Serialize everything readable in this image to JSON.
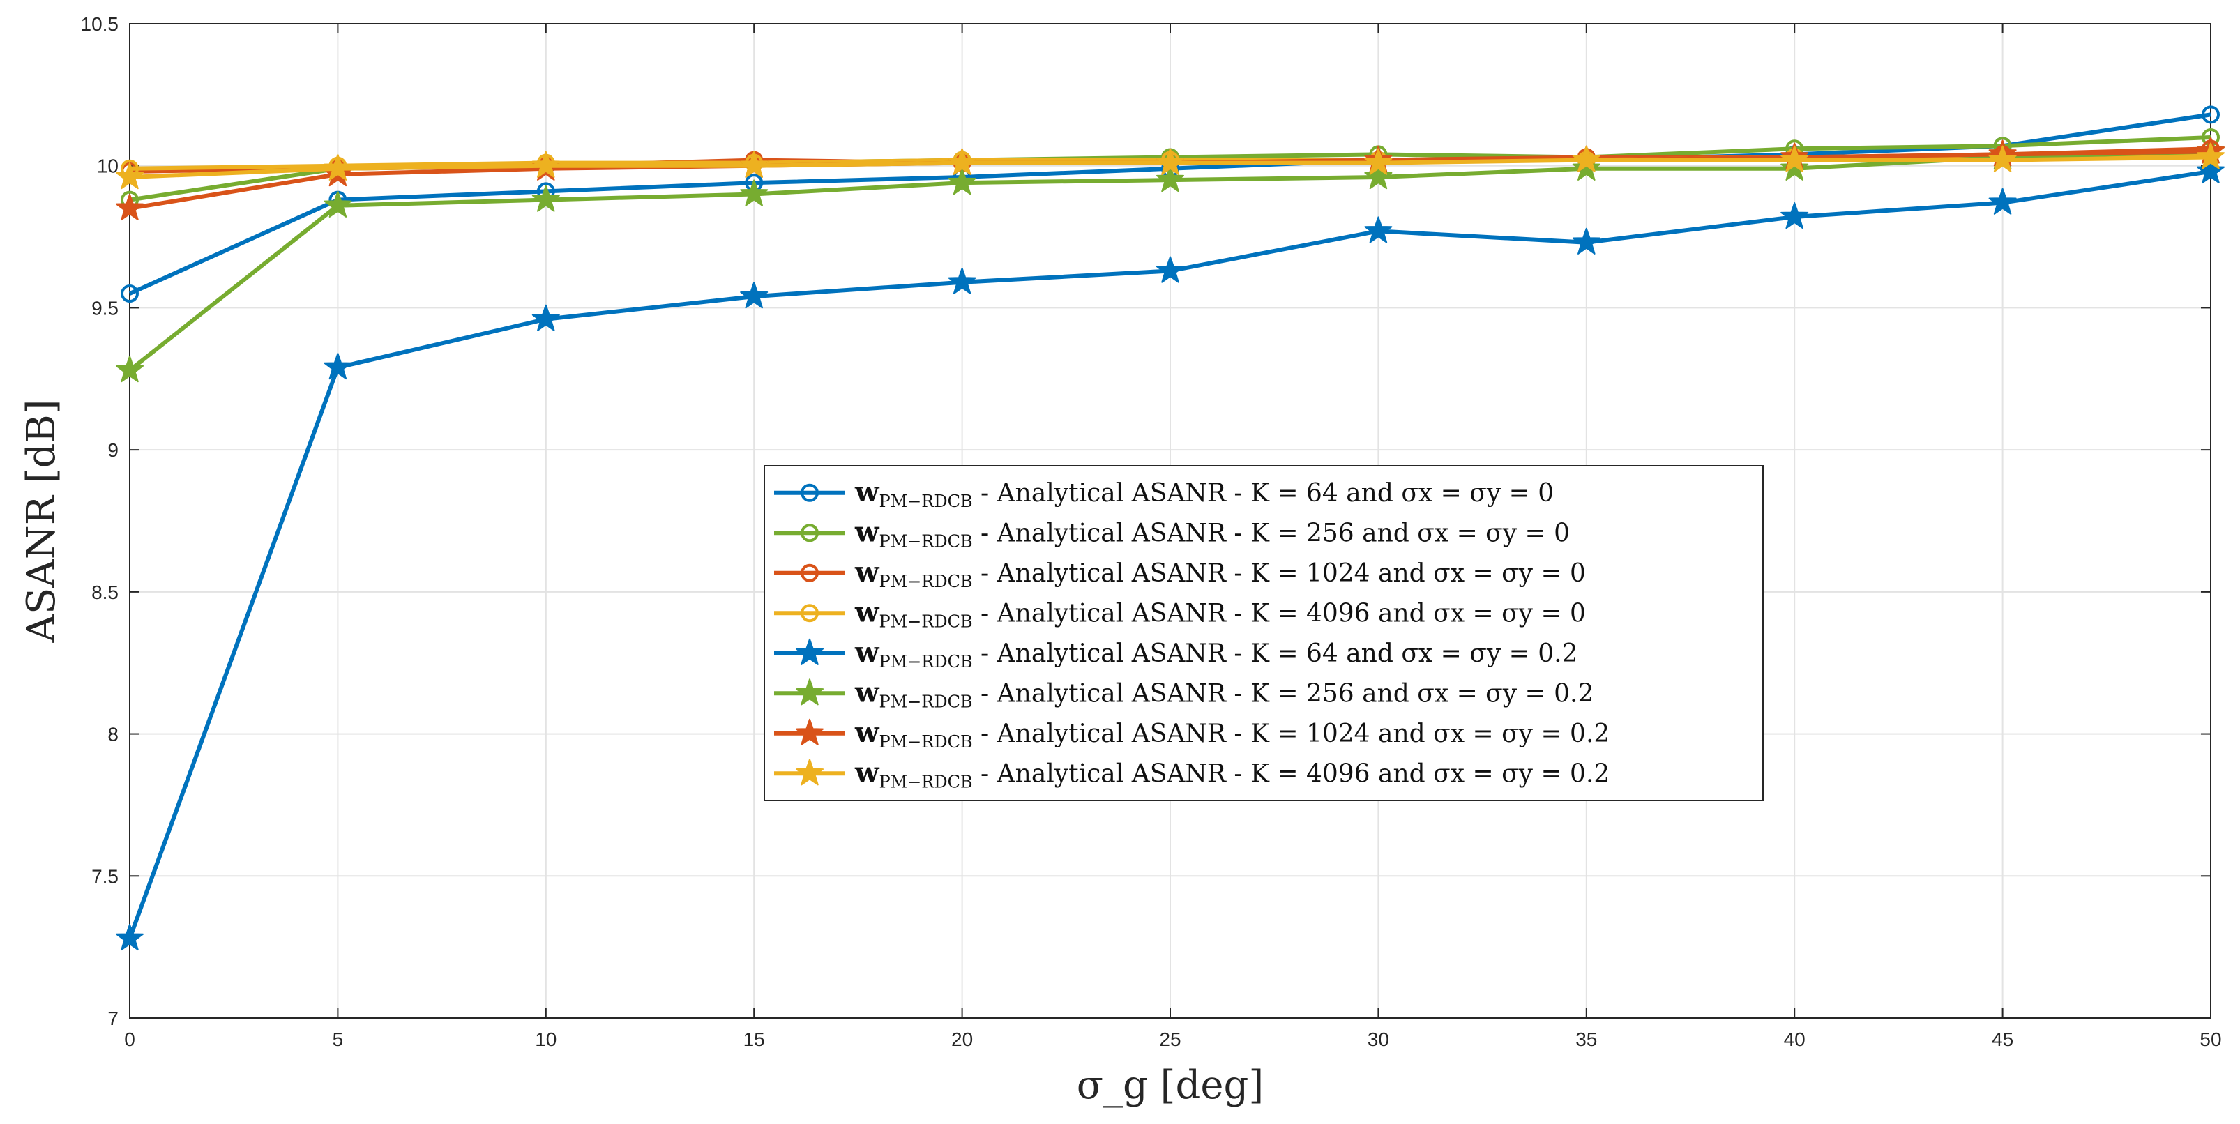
{
  "chart_data": {
    "type": "line",
    "title": "",
    "xlabel": "σ_g [deg]",
    "ylabel": "ASANR [dB]",
    "xlim": [
      0,
      50
    ],
    "ylim": [
      7,
      10.5
    ],
    "xticks": [
      0,
      5,
      10,
      15,
      20,
      25,
      30,
      35,
      40,
      45,
      50
    ],
    "xtick_labels": [
      "0",
      "5",
      "10",
      "15",
      "20",
      "25",
      "30",
      "35",
      "40",
      "45",
      "50"
    ],
    "yticks": [
      7,
      7.5,
      8,
      8.5,
      9,
      9.5,
      10,
      10.5
    ],
    "ytick_labels": [
      "7",
      "7.5",
      "8",
      "8.5",
      "9",
      "9.5",
      "10",
      "10.5"
    ],
    "grid": true,
    "legend_position": "center",
    "x": [
      0,
      5,
      10,
      15,
      20,
      25,
      30,
      35,
      40,
      45,
      50
    ],
    "series": [
      {
        "name": "w_PM−RDCB - Analytical ASANR - K = 64 and σx = σy = 0",
        "legend_text": "w",
        "legend_sub": "PM−RDCB",
        "legend_rest": "- Analytical ASANR - K = 64 and σx = σy = 0",
        "color": "#0072BD",
        "marker": "circle",
        "values": [
          9.55,
          9.88,
          9.91,
          9.94,
          9.96,
          9.99,
          10.02,
          10.02,
          10.04,
          10.07,
          10.18
        ]
      },
      {
        "name": "w_PM−RDCB - Analytical ASANR - K = 256 and σx = σy = 0",
        "legend_text": "w",
        "legend_sub": "PM−RDCB",
        "legend_rest": "- Analytical ASANR - K = 256 and σx = σy = 0",
        "color": "#77AC30",
        "marker": "circle",
        "values": [
          9.88,
          9.99,
          10.0,
          10.01,
          10.02,
          10.03,
          10.04,
          10.03,
          10.06,
          10.07,
          10.1
        ]
      },
      {
        "name": "w_PM−RDCB - Analytical ASANR - K = 1024 and σx = σy = 0",
        "legend_text": "w",
        "legend_sub": "PM−RDCB",
        "legend_rest": "- Analytical ASANR - K = 1024 and σx = σy = 0",
        "color": "#D95319",
        "marker": "circle",
        "values": [
          9.98,
          9.99,
          10.0,
          10.02,
          10.01,
          10.02,
          10.02,
          10.03,
          10.03,
          10.04,
          10.06
        ]
      },
      {
        "name": "w_PM−RDCB - Analytical ASANR - K = 4096 and σx = σy = 0",
        "legend_text": "w",
        "legend_sub": "PM−RDCB",
        "legend_rest": "- Analytical ASANR - K = 4096 and σx = σy = 0",
        "color": "#EDB120",
        "marker": "circle",
        "values": [
          9.99,
          10.0,
          10.01,
          10.01,
          10.02,
          10.02,
          10.02,
          10.02,
          10.03,
          10.03,
          10.04
        ]
      },
      {
        "name": "w_PM−RDCB - Analytical ASANR - K = 64 and σx = σy = 0.2",
        "legend_text": "w",
        "legend_sub": "PM−RDCB",
        "legend_rest": "- Analytical ASANR - K = 64 and σx = σy = 0.2",
        "color": "#0072BD",
        "marker": "star",
        "values": [
          7.28,
          9.29,
          9.46,
          9.54,
          9.59,
          9.63,
          9.77,
          9.73,
          9.82,
          9.87,
          9.98
        ]
      },
      {
        "name": "w_PM−RDCB - Analytical ASANR - K = 256 and σx = σy = 0.2",
        "legend_text": "w",
        "legend_sub": "PM−RDCB",
        "legend_rest": "- Analytical ASANR - K = 256 and σx = σy = 0.2",
        "color": "#77AC30",
        "marker": "star",
        "values": [
          9.28,
          9.86,
          9.88,
          9.9,
          9.94,
          9.95,
          9.96,
          9.99,
          9.99,
          10.03,
          10.05
        ]
      },
      {
        "name": "w_PM−RDCB - Analytical ASANR - K = 1024 and σx = σy = 0.2",
        "legend_text": "w",
        "legend_sub": "PM−RDCB",
        "legend_rest": "- Analytical ASANR - K = 1024 and σx = σy = 0.2",
        "color": "#D95319",
        "marker": "star",
        "values": [
          9.85,
          9.97,
          9.99,
          10.0,
          10.01,
          10.01,
          10.02,
          10.02,
          10.03,
          10.04,
          10.05
        ]
      },
      {
        "name": "w_PM−RDCB - Analytical ASANR - K = 4096 and σx = σy = 0.2",
        "legend_text": "w",
        "legend_sub": "PM−RDCB",
        "legend_rest": "- Analytical ASANR - K = 4096 and σx = σy = 0.2",
        "color": "#EDB120",
        "marker": "star",
        "values": [
          9.96,
          9.99,
          10.0,
          10.0,
          10.01,
          10.01,
          10.01,
          10.02,
          10.02,
          10.02,
          10.03
        ]
      }
    ]
  }
}
